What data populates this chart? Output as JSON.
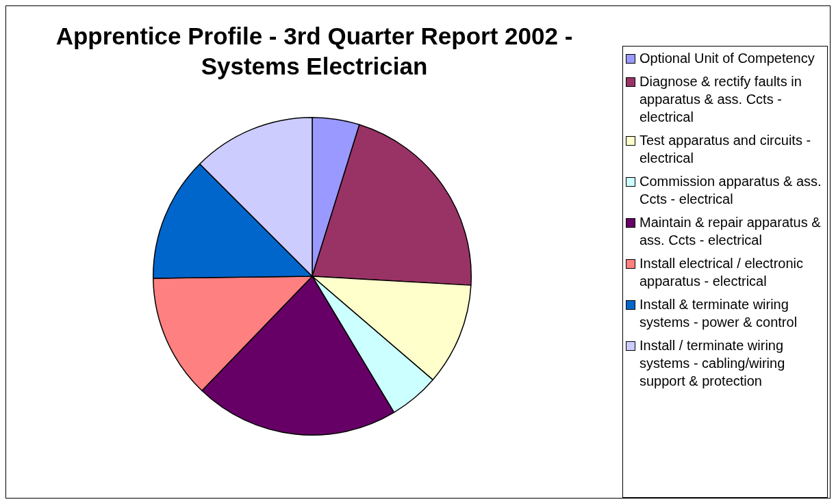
{
  "chart_data": {
    "type": "pie",
    "title": "Apprentice Profile - 3rd Quarter Report 2002 - Systems Electrician",
    "categories": [
      "Optional Unit of Competency",
      "Diagnose & rectify faults in apparatus & ass. Ccts - electrical",
      "Test apparatus and circuits - electrical",
      "Commission apparatus & ass. Ccts - electrical",
      "Maintain & repair apparatus  & ass. Ccts - electrical",
      "Install electrical / electronic apparatus - electrical",
      "Install & terminate wiring systems - power & control",
      "Install / terminate wiring systems - cabling/wiring support & protection"
    ],
    "values": [
      4.8,
      21.1,
      10.4,
      5.1,
      20.8,
      12.6,
      12.7,
      12.5
    ],
    "colors": [
      "#9999ff",
      "#993366",
      "#ffffcc",
      "#ccffff",
      "#660066",
      "#ff8080",
      "#0066cc",
      "#ccccff"
    ],
    "legend": "right"
  }
}
